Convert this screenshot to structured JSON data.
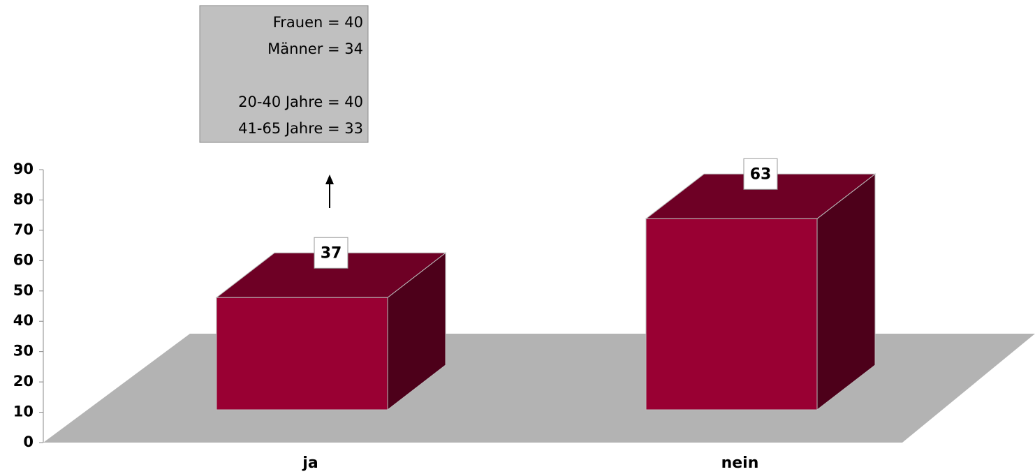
{
  "chart_data": {
    "type": "bar3d",
    "categories": [
      "ja",
      "nein"
    ],
    "values": [
      37,
      63
    ],
    "color": "#990033",
    "ylim": [
      0,
      90
    ],
    "yticks": [
      0,
      10,
      20,
      30,
      40,
      50,
      60,
      70,
      80,
      90
    ],
    "annotation": [
      "Frauen = 40",
      "Männer = 34",
      "20-40 Jahre = 40",
      "41-65 Jahre = 33"
    ]
  }
}
